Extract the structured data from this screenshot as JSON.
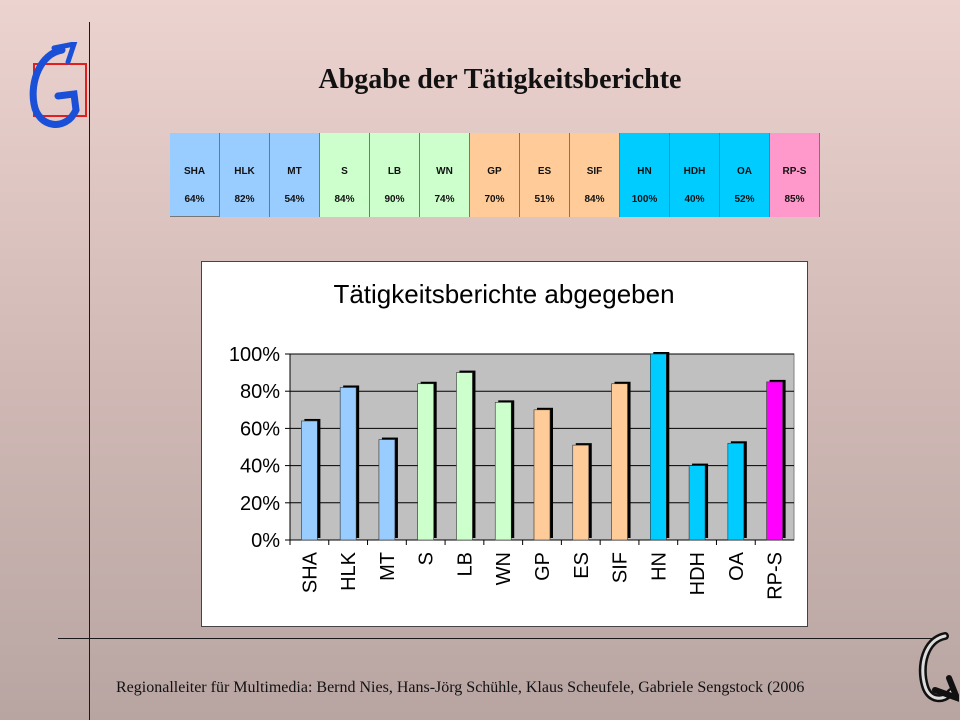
{
  "title": "Abgabe der Tätigkeitsberichte",
  "footer": "Regionalleiter für Multimedia: Bernd Nies, Hans-Jörg Schühle, Klaus Scheufele, Gabriele Sengstock (2006",
  "table": {
    "headers": [
      "SHA",
      "HLK",
      "MT",
      "S",
      "LB",
      "WN",
      "GP",
      "ES",
      "SIF",
      "HN",
      "HDH",
      "OA",
      "RP-S"
    ],
    "values": [
      "64%",
      "82%",
      "54%",
      "84%",
      "90%",
      "74%",
      "70%",
      "51%",
      "84%",
      "100%",
      "40%",
      "52%",
      "85%"
    ],
    "colors": [
      "#99ccff",
      "#99ccff",
      "#99ccff",
      "#ccffcc",
      "#ccffcc",
      "#ccffcc",
      "#ffcc99",
      "#ffcc99",
      "#ffcc99",
      "#00ccff",
      "#00ccff",
      "#00ccff",
      "#ff99cc"
    ]
  },
  "chart_data": {
    "type": "bar",
    "title": "Tätigkeitsberichte abgegeben",
    "categories": [
      "SHA",
      "HLK",
      "MT",
      "S",
      "LB",
      "WN",
      "GP",
      "ES",
      "SIF",
      "HN",
      "HDH",
      "OA",
      "RP-S"
    ],
    "values": [
      64,
      82,
      54,
      84,
      90,
      74,
      70,
      51,
      84,
      100,
      40,
      52,
      85
    ],
    "colors": [
      "#99ccff",
      "#99ccff",
      "#99ccff",
      "#ccffcc",
      "#ccffcc",
      "#ccffcc",
      "#ffcc99",
      "#ffcc99",
      "#ffcc99",
      "#00ccff",
      "#00ccff",
      "#00ccff",
      "#ff00ff"
    ],
    "yticks": [
      "0%",
      "20%",
      "40%",
      "60%",
      "80%",
      "100%"
    ],
    "ylim": [
      0,
      100
    ],
    "grid": true,
    "plot_background": "#c0c0c0"
  }
}
